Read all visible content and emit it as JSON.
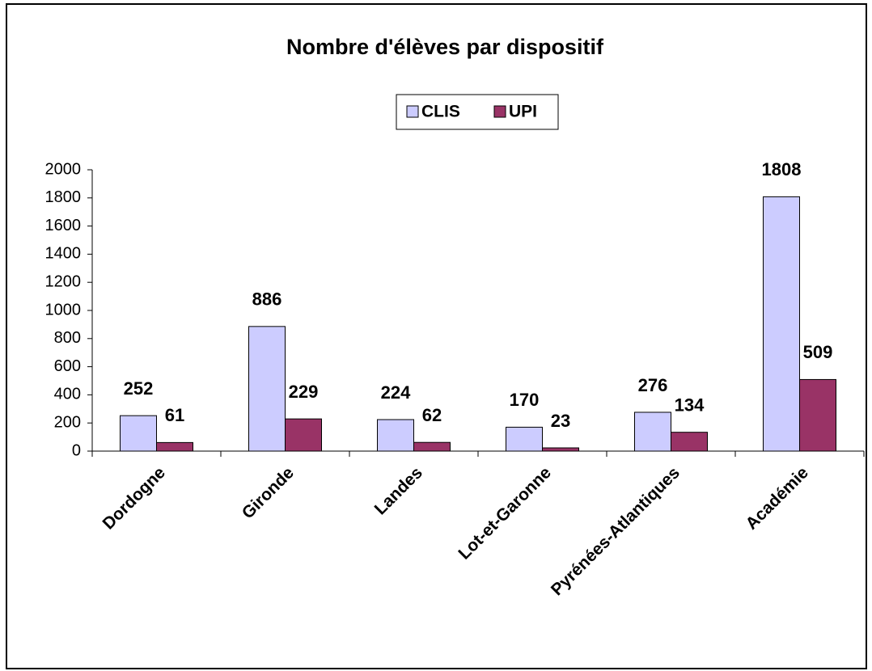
{
  "chart_data": {
    "type": "bar",
    "title": "Nombre d'élèves par dispositif",
    "categories": [
      "Dordogne",
      "Gironde",
      "Landes",
      "Lot-et-Garonne",
      "Pyrénées-Atlantiques",
      "Académie"
    ],
    "series": [
      {
        "name": "CLIS",
        "color": "#ccccff",
        "values": [
          252,
          886,
          224,
          170,
          276,
          1808
        ]
      },
      {
        "name": "UPI",
        "color": "#993366",
        "values": [
          61,
          229,
          62,
          23,
          134,
          509
        ]
      }
    ],
    "ylim": [
      0,
      2000
    ],
    "yticks": [
      0,
      200,
      400,
      600,
      800,
      1000,
      1200,
      1400,
      1600,
      1800,
      2000
    ],
    "grid": false,
    "legend": "top"
  }
}
